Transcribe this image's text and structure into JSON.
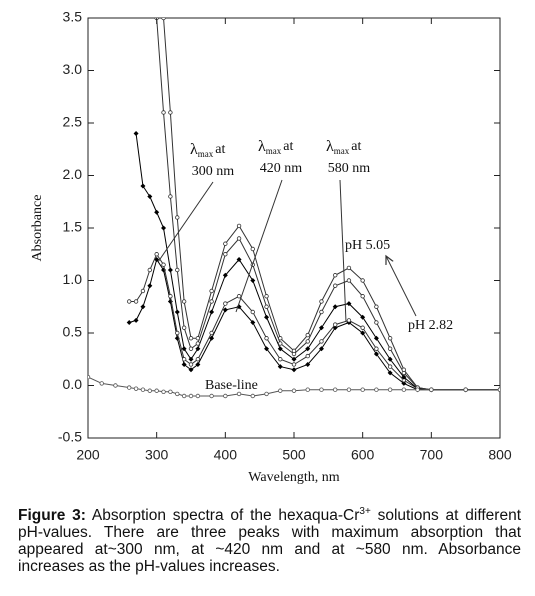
{
  "chart_data": {
    "type": "line",
    "x_label": "Wavelength, nm",
    "y_label": "Absorbance",
    "xlim": [
      200,
      800
    ],
    "xticks": [
      200,
      300,
      400,
      500,
      600,
      700,
      800
    ],
    "ylim": [
      -0.5,
      3.5
    ],
    "yticks": [
      -0.5,
      {
        "value": 0,
        "label": "0.0"
      },
      0.5,
      {
        "value": 1,
        "label": "1.0"
      },
      1.5,
      {
        "value": 2,
        "label": "2.0"
      },
      2.5,
      {
        "value": 3,
        "label": "3.0"
      },
      3.5
    ],
    "x": [
      200,
      220,
      240,
      260,
      270,
      280,
      290,
      300,
      310,
      320,
      330,
      340,
      350,
      360,
      380,
      400,
      420,
      440,
      460,
      480,
      500,
      520,
      540,
      560,
      580,
      600,
      620,
      640,
      660,
      680,
      700,
      750,
      800
    ],
    "series": [
      {
        "color": "#000000",
        "marker": "filled",
        "values": [
          null,
          null,
          null,
          0.6,
          0.62,
          0.75,
          0.95,
          1.2,
          1.1,
          0.8,
          0.45,
          0.2,
          0.15,
          0.2,
          0.45,
          0.72,
          0.75,
          0.6,
          0.35,
          0.18,
          0.15,
          0.2,
          0.35,
          0.55,
          0.6,
          0.5,
          0.3,
          0.12,
          0.02,
          -0.04,
          -0.04,
          -0.04,
          -0.04
        ]
      },
      {
        "color": "#333333",
        "marker": "open",
        "values": [
          null,
          null,
          null,
          0.8,
          0.8,
          0.9,
          1.1,
          1.25,
          1.15,
          0.85,
          0.5,
          0.25,
          0.2,
          0.25,
          0.5,
          0.78,
          0.85,
          0.7,
          0.45,
          0.25,
          0.2,
          0.28,
          0.42,
          0.58,
          0.62,
          0.55,
          0.35,
          0.18,
          0.05,
          -0.03,
          -0.04,
          -0.04,
          -0.04
        ]
      },
      {
        "color": "#000000",
        "marker": "filled",
        "values": [
          null,
          null,
          null,
          null,
          2.4,
          1.9,
          1.8,
          1.65,
          1.5,
          1.1,
          0.7,
          0.35,
          0.25,
          0.35,
          0.7,
          1.05,
          1.2,
          1.0,
          0.65,
          0.35,
          0.25,
          0.35,
          0.55,
          0.75,
          0.78,
          0.65,
          0.45,
          0.25,
          0.08,
          -0.03,
          -0.04,
          -0.04,
          -0.04
        ]
      },
      {
        "color": "#333333",
        "marker": "open",
        "values": [
          null,
          null,
          null,
          null,
          null,
          null,
          null,
          3.5,
          2.6,
          1.8,
          1.1,
          0.55,
          0.35,
          0.4,
          0.8,
          1.25,
          1.4,
          1.15,
          0.75,
          0.4,
          0.3,
          0.42,
          0.7,
          0.95,
          1.0,
          0.85,
          0.6,
          0.35,
          0.12,
          -0.02,
          -0.04,
          -0.04,
          -0.04
        ]
      },
      {
        "color": "#333333",
        "marker": "open",
        "values": [
          null,
          null,
          null,
          null,
          null,
          null,
          null,
          null,
          3.5,
          2.6,
          1.6,
          0.8,
          0.45,
          0.45,
          0.9,
          1.35,
          1.52,
          1.3,
          0.85,
          0.45,
          0.33,
          0.48,
          0.8,
          1.05,
          1.12,
          1.0,
          0.75,
          0.45,
          0.15,
          -0.02,
          -0.04,
          -0.04,
          -0.04
        ]
      },
      {
        "color": "#555555",
        "marker": "open",
        "values": [
          0.08,
          0.02,
          0,
          -0.02,
          -0.03,
          -0.04,
          -0.05,
          -0.05,
          -0.06,
          -0.06,
          -0.08,
          -0.1,
          -0.1,
          -0.1,
          -0.1,
          -0.1,
          -0.08,
          -0.1,
          -0.08,
          -0.05,
          -0.05,
          -0.04,
          -0.04,
          -0.04,
          -0.04,
          -0.04,
          -0.04,
          -0.04,
          -0.04,
          -0.04,
          -0.04,
          -0.04,
          -0.04
        ]
      }
    ],
    "lambda_labels": [
      {
        "symbol": "λ",
        "subscript": "max",
        "suffix": "at",
        "wavelength": "300 nm"
      },
      {
        "symbol": "λ",
        "subscript": "max",
        "suffix": "at",
        "wavelength": "420 nm"
      },
      {
        "symbol": "λ",
        "subscript": "max",
        "suffix": "at",
        "wavelength": "580 nm"
      }
    ],
    "annotations": [
      "pH 5.05",
      "pH 2.82",
      "Base-line"
    ]
  },
  "caption": {
    "label": "Figure 3:",
    "text_before": " Absorption spectra of the hexaqua-Cr",
    "superscript": "3+",
    "text_after": " solutions at different pH-values. There are three peaks with maximum absorption that appeared at~300 nm, at ~420 nm and at ~580 nm. Absorbance increases as the pH-values increases."
  }
}
